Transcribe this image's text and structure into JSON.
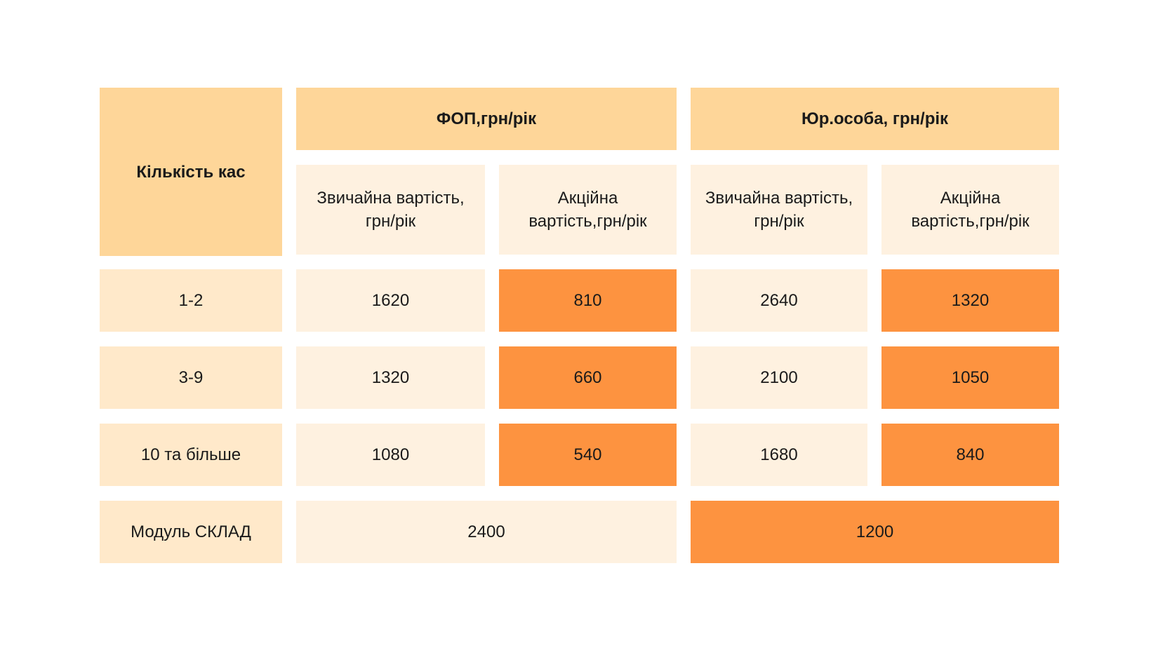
{
  "table": {
    "corner_header": "Кількість кас",
    "group_headers": {
      "fop": "ФОП,грн/рік",
      "legal": "Юр.особа, грн/рік"
    },
    "sub_headers": {
      "fop_regular": "Звичайна вартість, грн/рік",
      "fop_promo": "Акційна вартість,грн/рік",
      "legal_regular": "Звичайна вартість, грн/рік",
      "legal_promo": "Акційна вартість,грн/рік"
    },
    "rows": [
      {
        "label": "1-2",
        "fop_regular": "1620",
        "fop_promo": "810",
        "legal_regular": "2640",
        "legal_promo": "1320"
      },
      {
        "label": "3-9",
        "fop_regular": "1320",
        "fop_promo": "660",
        "legal_regular": "2100",
        "legal_promo": "1050"
      },
      {
        "label": "10 та більше",
        "fop_regular": "1080",
        "fop_promo": "540",
        "legal_regular": "1680",
        "legal_promo": "840"
      }
    ],
    "module_row": {
      "label": "Модуль СКЛАД",
      "regular": "2400",
      "promo": "1200"
    }
  },
  "colors": {
    "header_dark": "#fed699",
    "header_light": "#fef1e0",
    "row_label": "#ffe9ca",
    "regular_cell": "#fef1e0",
    "promo_cell": "#fd9340"
  }
}
